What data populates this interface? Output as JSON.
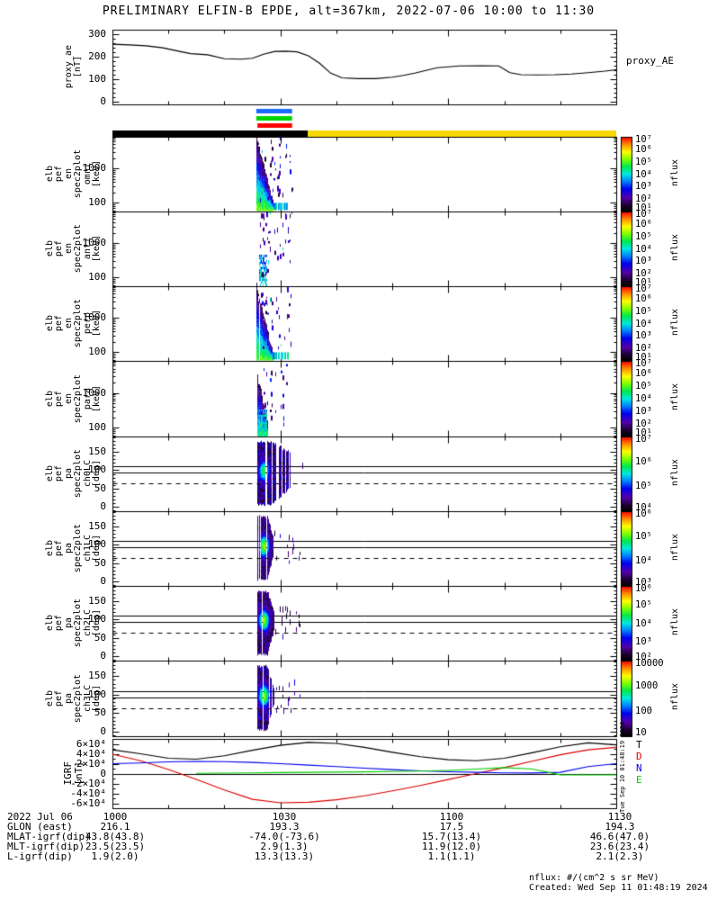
{
  "title": "PRELIMINARY ELFIN-B EPDE, alt=367km, 2022-07-06 10:00 to 11:30",
  "right_labels": {
    "proxy_ae": "proxy_AE"
  },
  "side_stamp": "Tue Sep 10 01:48:19 2024",
  "footer": {
    "units": "nflux: #/(cm^2 s sr MeV)",
    "created": "Created: Wed Sep 11 01:48:19 2024"
  },
  "colors": {
    "axis": "#000000",
    "mode_bar_active": "#000000",
    "mode_bar_idle": "#f5d800",
    "epd_bar_blue": "#1a6aff",
    "epd_bar_green": "#00d400",
    "epd_bar_red": "#ff0000",
    "colormap_stops": [
      [
        0.0,
        "#000000"
      ],
      [
        0.08,
        "#1e0033"
      ],
      [
        0.18,
        "#5500aa"
      ],
      [
        0.3,
        "#0000ee"
      ],
      [
        0.4,
        "#0080ff"
      ],
      [
        0.5,
        "#00e8e0"
      ],
      [
        0.6,
        "#00e850"
      ],
      [
        0.7,
        "#7dff00"
      ],
      [
        0.8,
        "#ffff00"
      ],
      [
        0.9,
        "#ff9000"
      ],
      [
        1.0,
        "#ff0000"
      ]
    ]
  },
  "chart_data": {
    "type": "multi-panel time-series + spectrogram stack (satellite survey plot)",
    "time_axis": {
      "start": "10:00",
      "end": "11:30",
      "tick_labels": [
        "1000",
        "1030",
        "1100",
        "1130"
      ],
      "tick_minutes": [
        0,
        30,
        60,
        90
      ],
      "minor_step_min": 10
    },
    "panels": [
      {
        "id": "proxy_ae",
        "kind": "line",
        "label_words": [
          "proxy_ae",
          "[nT]"
        ],
        "right_label": "proxy_AE",
        "ylim": [
          -10,
          320
        ],
        "major": 100,
        "minor": 20,
        "yticks": [
          {
            "v": 0,
            "l": "0"
          },
          {
            "v": 100,
            "l": "100"
          },
          {
            "v": 200,
            "l": "200"
          },
          {
            "v": 300,
            "l": "300"
          }
        ],
        "series": [
          {
            "name": "proxy_AE",
            "color": "#000000",
            "x": [
              0,
              3,
              6,
              9,
              12,
              14,
              17,
              20,
              23,
              25,
              27,
              29,
              31,
              33,
              35,
              37,
              39,
              41,
              44,
              47,
              50,
              52,
              54,
              56,
              58,
              62,
              66,
              69,
              71,
              73,
              76,
              79,
              82,
              85,
              88,
              90
            ],
            "y": [
              256,
              253,
              249,
              240,
              224,
              214,
              209,
              192,
              190,
              194,
              212,
              224,
              225,
              222,
              205,
              172,
              128,
              107,
              104,
              104,
              110,
              118,
              128,
              140,
              152,
              160,
              161,
              160,
              130,
              121,
              120,
              121,
              124,
              130,
              137,
              143
            ]
          }
        ]
      },
      {
        "id": "mode_bars",
        "kind": "bars",
        "small_bars": [
          {
            "name": "epd-blue",
            "color": "#1a6aff",
            "t": [
              25.7,
              32.1
            ]
          },
          {
            "name": "epd-green",
            "color": "#00d400",
            "t": [
              25.7,
              32.1
            ]
          },
          {
            "name": "epd-red",
            "color": "#ff0000",
            "t": [
              25.9,
              32.1
            ]
          }
        ],
        "mode_segments": [
          {
            "name": "mode-black",
            "color": "#000000",
            "t": [
              0,
              34.9
            ]
          },
          {
            "name": "mode-yellow",
            "color": "#f5d800",
            "t": [
              34.9,
              90
            ]
          }
        ]
      },
      {
        "id": "en_omni",
        "kind": "spec_energy",
        "label_words": [
          "elb",
          "pef",
          "en",
          "spec2plot",
          "omni",
          "[keV]"
        ],
        "ylog": [
          1.75,
          3.92
        ],
        "yticks": [
          {
            "v": 2,
            "l": "100"
          },
          {
            "v": 3,
            "l": "1000"
          }
        ],
        "colorbar": {
          "log_range": [
            1,
            7
          ],
          "tick_values": [
            7,
            6,
            5,
            4,
            3,
            2,
            1
          ],
          "ticks": [
            "10⁷",
            "10⁶",
            "10⁵",
            "10⁴",
            "10³",
            "10²",
            "10¹"
          ],
          "label": "nflux"
        },
        "burst": {
          "t0": 25.7,
          "t1": 32.2,
          "wedge_w_min": 3.0,
          "wedge_top_start": 3.92,
          "wedge_top_end": 1.95,
          "strength": 1.0,
          "bottom_strip": true,
          "speckle_density": 0.8,
          "seed": 11
        }
      },
      {
        "id": "en_anti",
        "kind": "spec_energy",
        "label_words": [
          "elb",
          "pef",
          "en",
          "spec2plot",
          "anti",
          "[keV]"
        ],
        "ylog": [
          1.75,
          3.92
        ],
        "yticks": [
          {
            "v": 2,
            "l": "100"
          },
          {
            "v": 3,
            "l": "1000"
          }
        ],
        "colorbar": {
          "log_range": [
            1,
            7
          ],
          "tick_values": [
            7,
            6,
            5,
            4,
            3,
            2,
            1
          ],
          "ticks": [
            "10⁷",
            "10⁶",
            "10⁵",
            "10⁴",
            "10³",
            "10²",
            "10¹"
          ],
          "label": "nflux"
        },
        "burst": {
          "t0": 25.9,
          "t1": 32.2,
          "wedge_w_min": 0,
          "core_small": {
            "w_min": 1.4,
            "top_log": 2.65,
            "lf": 4.2
          },
          "strength": 0.9,
          "speckle_density": 0.55,
          "seed": 23
        }
      },
      {
        "id": "en_perp",
        "kind": "spec_energy",
        "label_words": [
          "elb",
          "pef",
          "en",
          "spec2plot",
          "perp",
          "[keV]"
        ],
        "ylog": [
          1.75,
          3.92
        ],
        "yticks": [
          {
            "v": 2,
            "l": "100"
          },
          {
            "v": 3,
            "l": "1000"
          }
        ],
        "colorbar": {
          "log_range": [
            1,
            7
          ],
          "tick_values": [
            7,
            6,
            5,
            4,
            3,
            2,
            1
          ],
          "ticks": [
            "10⁷",
            "10⁶",
            "10⁵",
            "10⁴",
            "10³",
            "10²",
            "10¹"
          ],
          "label": "nflux"
        },
        "burst": {
          "t0": 25.7,
          "t1": 32.0,
          "wedge_w_min": 2.9,
          "wedge_top_start": 3.92,
          "wedge_top_end": 1.95,
          "strength": 0.97,
          "bottom_strip": true,
          "speckle_density": 0.7,
          "seed": 37
        }
      },
      {
        "id": "en_para",
        "kind": "spec_energy",
        "label_words": [
          "elb",
          "pef",
          "en",
          "spec2plot",
          "para",
          "[keV]"
        ],
        "ylog": [
          1.75,
          3.92
        ],
        "yticks": [
          {
            "v": 2,
            "l": "100"
          },
          {
            "v": 3,
            "l": "1000"
          }
        ],
        "colorbar": {
          "log_range": [
            1,
            7
          ],
          "tick_values": [
            7,
            6,
            5,
            4,
            3,
            2,
            1
          ],
          "ticks": [
            "10⁷",
            "10⁶",
            "10⁵",
            "10⁴",
            "10³",
            "10²",
            "10¹"
          ],
          "label": "nflux"
        },
        "burst": {
          "t0": 25.8,
          "t1": 31.8,
          "wedge_w_min": 1.9,
          "wedge_top_start": 3.5,
          "wedge_top_end": 2.0,
          "strength": 0.82,
          "core_small": {
            "w_min": 1.5,
            "top_log": 2.5,
            "lf": 4.6
          },
          "speckle_density": 0.6,
          "seed": 49
        }
      },
      {
        "id": "pa_ch0",
        "kind": "spec_pa",
        "label_words": [
          "elb",
          "pef",
          "pa",
          "spec2plot",
          "ch0LC",
          "[deg]"
        ],
        "ylim": [
          -12,
          192
        ],
        "major": 50,
        "minor": 10,
        "yticks": [
          {
            "v": 0,
            "l": "0"
          },
          {
            "v": 50,
            "l": "50"
          },
          {
            "v": 100,
            "l": "100"
          },
          {
            "v": 150,
            "l": "150"
          }
        ],
        "loss_cone_solid_deg": [
          93,
          110.5
        ],
        "loss_cone_dashed_deg": 64,
        "colorbar": {
          "log_range": [
            4,
            7
          ],
          "tick_values": [
            7,
            6,
            5,
            4
          ],
          "ticks": [
            "10⁷",
            "10⁶",
            "10⁵",
            "10⁴"
          ],
          "label": "nflux"
        },
        "burst": {
          "t0": 25.9,
          "main_t1": 31.6,
          "speck_t1": 31.9,
          "core_t": 27.0,
          "core_deg": 96,
          "core_lf": 5.9,
          "bg": [
            4.05,
            4.95
          ],
          "tail": true,
          "seed": 55
        }
      },
      {
        "id": "pa_ch1",
        "kind": "spec_pa",
        "label_words": [
          "elb",
          "pef",
          "pa",
          "spec2plot",
          "ch1LC",
          "[deg]"
        ],
        "ylim": [
          -12,
          192
        ],
        "major": 50,
        "minor": 10,
        "yticks": [
          {
            "v": 0,
            "l": "0"
          },
          {
            "v": 50,
            "l": "50"
          },
          {
            "v": 100,
            "l": "100"
          },
          {
            "v": 150,
            "l": "150"
          }
        ],
        "loss_cone_solid_deg": [
          93,
          110.5
        ],
        "loss_cone_dashed_deg": 64,
        "colorbar": {
          "log_range": [
            3,
            6
          ],
          "tick_values": [
            6,
            5,
            4,
            3
          ],
          "ticks": [
            "10⁶",
            "10⁵",
            "10⁴",
            "10³"
          ],
          "label": "nflux"
        },
        "burst": {
          "t0": 25.9,
          "main_t1": 28.8,
          "speck_t1": 31.6,
          "core_t": 27.0,
          "core_deg": 95,
          "core_lf": 5.2,
          "bg": [
            3.05,
            3.85
          ],
          "tail": false,
          "seed": 66
        }
      },
      {
        "id": "pa_ch2",
        "kind": "spec_pa",
        "label_words": [
          "elb",
          "pef",
          "pa",
          "spec2plot",
          "ch2LC",
          "[deg]"
        ],
        "ylim": [
          -12,
          192
        ],
        "major": 50,
        "minor": 10,
        "yticks": [
          {
            "v": 0,
            "l": "0"
          },
          {
            "v": 50,
            "l": "50"
          },
          {
            "v": 100,
            "l": "100"
          },
          {
            "v": 150,
            "l": "150"
          }
        ],
        "loss_cone_solid_deg": [
          93,
          110.5
        ],
        "loss_cone_dashed_deg": 64,
        "colorbar": {
          "log_range": [
            2,
            6
          ],
          "tick_values": [
            6,
            5,
            4,
            3,
            2
          ],
          "ticks": [
            "10⁶",
            "10⁵",
            "10⁴",
            "10³",
            "10²"
          ],
          "label": "nflux"
        },
        "burst": {
          "t0": 25.9,
          "main_t1": 28.9,
          "speck_t1": 31.5,
          "core_t": 27.0,
          "core_deg": 96,
          "core_lf": 4.9,
          "bg": [
            2.1,
            3.0
          ],
          "tail": false,
          "seed": 77
        }
      },
      {
        "id": "pa_ch3",
        "kind": "spec_pa",
        "label_words": [
          "elb",
          "pef",
          "pa",
          "spec2plot",
          "ch3LC",
          "[deg]"
        ],
        "ylim": [
          -12,
          192
        ],
        "major": 50,
        "minor": 10,
        "yticks": [
          {
            "v": 0,
            "l": "0"
          },
          {
            "v": 50,
            "l": "50"
          },
          {
            "v": 100,
            "l": "100"
          },
          {
            "v": 150,
            "l": "150"
          }
        ],
        "loss_cone_solid_deg": [
          93,
          110.5
        ],
        "loss_cone_dashed_deg": 64,
        "colorbar": {
          "log_range": [
            1,
            4
          ],
          "tick_values": [
            4,
            3,
            2,
            1
          ],
          "ticks": [
            "10000",
            "1000",
            "100",
            "10"
          ],
          "label": "nflux"
        },
        "burst": {
          "t0": 25.9,
          "main_t1": 28.7,
          "speck_t1": 31.4,
          "core_t": 27.0,
          "core_deg": 95,
          "core_lf": 3.15,
          "bg": [
            1.1,
            1.95
          ],
          "tail": false,
          "seed": 88
        }
      },
      {
        "id": "igrf",
        "kind": "line_multi",
        "label_words": [
          "IGRF",
          "[nT]"
        ],
        "ylim": [
          -70000,
          70000
        ],
        "major": 20000,
        "minor": 10000,
        "yticks": [
          {
            "v": 60000,
            "l": "6×10⁴"
          },
          {
            "v": 40000,
            "l": "4×10⁴"
          },
          {
            "v": 20000,
            "l": "2×10⁴"
          },
          {
            "v": 0,
            "l": "0"
          },
          {
            "v": -20000,
            "l": "-2×10⁴"
          },
          {
            "v": -40000,
            "l": "-4×10⁴"
          },
          {
            "v": -60000,
            "l": "-6×10⁴"
          }
        ],
        "legend": [
          {
            "l": "T",
            "color": "#000000"
          },
          {
            "l": "D",
            "color": "#dd0000"
          },
          {
            "l": "N",
            "color": "#0000ee"
          },
          {
            "l": "E",
            "color": "#00cc00"
          }
        ],
        "series": [
          {
            "name": "T",
            "color": "#000000",
            "x": [
              0,
              5,
              10,
              15,
              20,
              25,
              30,
              35,
              40,
              45,
              50,
              55,
              60,
              65,
              70,
              75,
              80,
              85,
              90
            ],
            "y": [
              48000,
              40000,
              31000,
              29000,
              36000,
              47000,
              57000,
              63000,
              61000,
              53000,
              43000,
              34000,
              28000,
              26000,
              31000,
              42000,
              54000,
              62000,
              58000
            ]
          },
          {
            "name": "D",
            "color": "#dd0000",
            "x": [
              0,
              5,
              10,
              15,
              20,
              25,
              30,
              35,
              40,
              45,
              50,
              55,
              60,
              65,
              70,
              75,
              80,
              85,
              90
            ],
            "y": [
              39000,
              26000,
              8000,
              -12000,
              -33000,
              -52000,
              -59000,
              -58000,
              -53000,
              -45000,
              -35000,
              -24000,
              -12000,
              0,
              12000,
              25000,
              38000,
              48000,
              53000
            ]
          },
          {
            "name": "N",
            "color": "#0000ee",
            "x": [
              0,
              5,
              10,
              15,
              20,
              25,
              30,
              35,
              40,
              45,
              50,
              55,
              60,
              65,
              70,
              75,
              80,
              85,
              90
            ],
            "y": [
              20000,
              21500,
              23500,
              24500,
              24000,
              22500,
              20000,
              17000,
              14000,
              11000,
              8000,
              5500,
              3500,
              2500,
              1500,
              1200,
              2500,
              14000,
              20000
            ]
          },
          {
            "name": "E",
            "color": "#00cc00",
            "x": [
              15,
              20,
              25,
              30,
              35,
              40,
              45,
              50,
              55,
              60,
              65,
              70,
              75,
              80,
              85,
              90
            ],
            "y": [
              500,
              1000,
              1500,
              2000,
              2500,
              3000,
              3500,
              4000,
              5000,
              6500,
              9000,
              12000,
              9000,
              -2500,
              -2800,
              -2800
            ]
          }
        ]
      }
    ]
  },
  "bottom_table": {
    "date_label": "2022 Jul 06",
    "time_labels": [
      "1000",
      "1030",
      "1100",
      "1130"
    ],
    "row_labels": [
      "GLON (east)",
      "MLAT-igrf(dip)",
      "MLT-igrf(dip)",
      "L-igrf(dip)"
    ],
    "columns": [
      [
        "216.1",
        "43.8(43.8)",
        "23.5(23.5)",
        "1.9(2.0)"
      ],
      [
        "193.3",
        "-74.0(-73.6)",
        "2.9(1.3)",
        "13.3(13.3)"
      ],
      [
        "17.5",
        "15.7(13.4)",
        "11.9(12.0)",
        "1.1(1.1)"
      ],
      [
        "194.3",
        "46.6(47.0)",
        "23.6(23.4)",
        "2.1(2.3)"
      ]
    ]
  }
}
